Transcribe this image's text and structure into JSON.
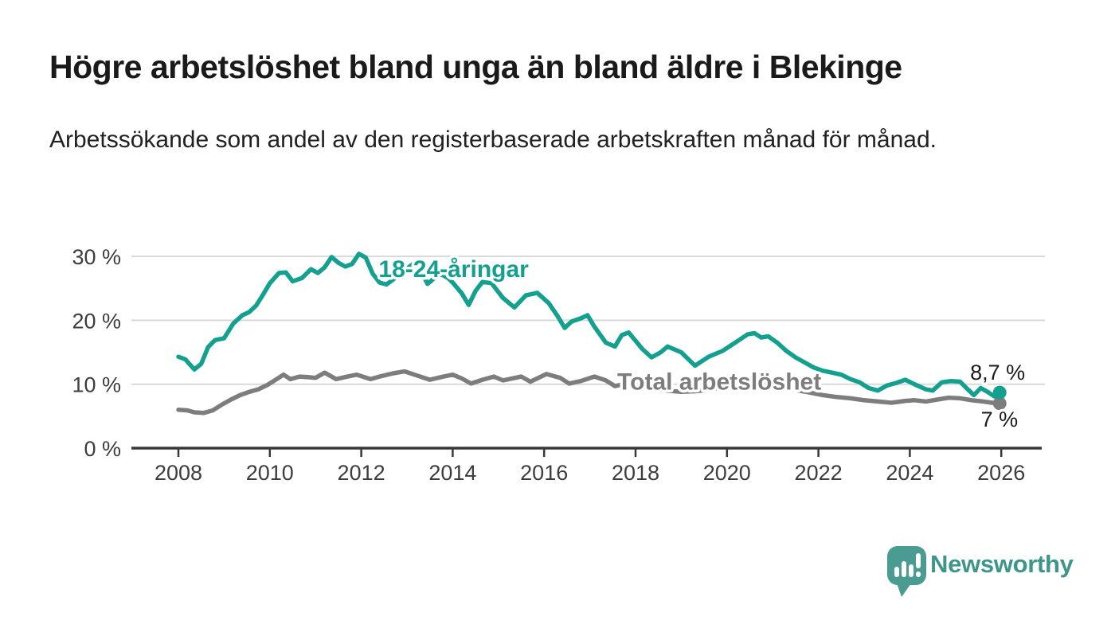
{
  "header": {
    "title": "Högre arbetslöshet bland unga än bland äldre i Blekinge",
    "subtitle": "Arbetssökande som andel av den registerbaserade arbetskraften månad för månad."
  },
  "chart_data": {
    "type": "line",
    "unit": "%",
    "grid": true,
    "legend_position": "inline-labels",
    "x_axis": {
      "range_years": [
        2006.95,
        2027.0
      ],
      "ticks": [
        {
          "year": 2008,
          "label": "2008"
        },
        {
          "year": 2010,
          "label": "2010"
        },
        {
          "year": 2012,
          "label": "2012"
        },
        {
          "year": 2014,
          "label": "2014"
        },
        {
          "year": 2016,
          "label": "2016"
        },
        {
          "year": 2018,
          "label": "2018"
        },
        {
          "year": 2020,
          "label": "2020"
        },
        {
          "year": 2022,
          "label": "2022"
        },
        {
          "year": 2024,
          "label": "2024"
        },
        {
          "year": 2026,
          "label": "2026"
        }
      ]
    },
    "y_axis": {
      "range": [
        0,
        32
      ],
      "ticks": [
        {
          "value": 30,
          "label": "30 %"
        },
        {
          "value": 20,
          "label": "20 %"
        },
        {
          "value": 10,
          "label": "10 %"
        },
        {
          "value": 0,
          "label": "0 %"
        }
      ]
    },
    "series": [
      {
        "name": "18-24-aringar",
        "label": "18-24-åringar",
        "color": "#13a08f",
        "end_value": 8.7,
        "end_label": "8,7 %",
        "label_anchor": {
          "year": 2012.38,
          "value": 28.0
        },
        "points": [
          [
            2008.0,
            14.3
          ],
          [
            2008.15,
            13.9
          ],
          [
            2008.35,
            12.3
          ],
          [
            2008.5,
            13.2
          ],
          [
            2008.65,
            15.8
          ],
          [
            2008.8,
            16.9
          ],
          [
            2009.0,
            17.2
          ],
          [
            2009.2,
            19.5
          ],
          [
            2009.4,
            20.8
          ],
          [
            2009.55,
            21.3
          ],
          [
            2009.7,
            22.3
          ],
          [
            2009.85,
            24.0
          ],
          [
            2010.0,
            25.8
          ],
          [
            2010.2,
            27.4
          ],
          [
            2010.35,
            27.5
          ],
          [
            2010.5,
            26.1
          ],
          [
            2010.7,
            26.6
          ],
          [
            2010.9,
            28.0
          ],
          [
            2011.05,
            27.4
          ],
          [
            2011.2,
            28.3
          ],
          [
            2011.35,
            29.9
          ],
          [
            2011.5,
            29.0
          ],
          [
            2011.65,
            28.4
          ],
          [
            2011.8,
            28.8
          ],
          [
            2011.95,
            30.4
          ],
          [
            2012.1,
            29.8
          ],
          [
            2012.25,
            27.3
          ],
          [
            2012.4,
            25.9
          ],
          [
            2012.55,
            25.6
          ],
          [
            2012.7,
            26.4
          ],
          [
            2012.85,
            27.3
          ],
          [
            2013.0,
            28.1
          ],
          [
            2013.15,
            28.9
          ],
          [
            2013.3,
            27.8
          ],
          [
            2013.45,
            25.7
          ],
          [
            2013.6,
            26.6
          ],
          [
            2013.75,
            27.2
          ],
          [
            2013.9,
            26.6
          ],
          [
            2014.0,
            25.9
          ],
          [
            2014.2,
            24.2
          ],
          [
            2014.35,
            22.4
          ],
          [
            2014.5,
            24.6
          ],
          [
            2014.65,
            26.0
          ],
          [
            2014.85,
            25.8
          ],
          [
            2015.1,
            23.5
          ],
          [
            2015.35,
            22.0
          ],
          [
            2015.6,
            23.9
          ],
          [
            2015.85,
            24.3
          ],
          [
            2016.1,
            22.7
          ],
          [
            2016.3,
            20.6
          ],
          [
            2016.45,
            18.8
          ],
          [
            2016.6,
            19.8
          ],
          [
            2016.8,
            20.3
          ],
          [
            2016.95,
            20.8
          ],
          [
            2017.1,
            19.0
          ],
          [
            2017.35,
            16.5
          ],
          [
            2017.55,
            15.9
          ],
          [
            2017.7,
            17.7
          ],
          [
            2017.85,
            18.1
          ],
          [
            2018.15,
            15.5
          ],
          [
            2018.35,
            14.2
          ],
          [
            2018.55,
            15.0
          ],
          [
            2018.7,
            15.9
          ],
          [
            2019.0,
            15.0
          ],
          [
            2019.3,
            12.9
          ],
          [
            2019.6,
            14.3
          ],
          [
            2019.9,
            15.2
          ],
          [
            2020.2,
            16.6
          ],
          [
            2020.45,
            17.8
          ],
          [
            2020.6,
            18.0
          ],
          [
            2020.75,
            17.3
          ],
          [
            2020.9,
            17.5
          ],
          [
            2021.1,
            16.5
          ],
          [
            2021.3,
            15.2
          ],
          [
            2021.5,
            14.2
          ],
          [
            2021.7,
            13.4
          ],
          [
            2021.9,
            12.6
          ],
          [
            2022.1,
            12.1
          ],
          [
            2022.3,
            11.8
          ],
          [
            2022.5,
            11.5
          ],
          [
            2022.7,
            10.8
          ],
          [
            2022.9,
            10.3
          ],
          [
            2023.1,
            9.4
          ],
          [
            2023.3,
            9.0
          ],
          [
            2023.5,
            9.8
          ],
          [
            2023.7,
            10.2
          ],
          [
            2023.9,
            10.7
          ],
          [
            2024.1,
            10.0
          ],
          [
            2024.35,
            9.2
          ],
          [
            2024.5,
            9.0
          ],
          [
            2024.7,
            10.3
          ],
          [
            2024.9,
            10.5
          ],
          [
            2025.1,
            10.4
          ],
          [
            2025.25,
            9.3
          ],
          [
            2025.4,
            8.3
          ],
          [
            2025.55,
            9.4
          ],
          [
            2025.7,
            8.8
          ],
          [
            2025.85,
            8.1
          ],
          [
            2026.0,
            8.7
          ]
        ]
      },
      {
        "name": "total-arbetsloshet",
        "label": "Total arbetslöshet",
        "color": "#7d7d7d",
        "end_value": 7.0,
        "end_label": "7 %",
        "label_anchor": {
          "year": 2017.6,
          "value": 10.4
        },
        "points": [
          [
            2008.0,
            6.0
          ],
          [
            2008.2,
            5.9
          ],
          [
            2008.35,
            5.6
          ],
          [
            2008.55,
            5.5
          ],
          [
            2008.75,
            5.9
          ],
          [
            2008.95,
            6.8
          ],
          [
            2009.15,
            7.6
          ],
          [
            2009.35,
            8.3
          ],
          [
            2009.55,
            8.8
          ],
          [
            2009.75,
            9.2
          ],
          [
            2009.95,
            9.9
          ],
          [
            2010.15,
            10.8
          ],
          [
            2010.3,
            11.5
          ],
          [
            2010.45,
            10.8
          ],
          [
            2010.65,
            11.2
          ],
          [
            2010.85,
            11.1
          ],
          [
            2011.0,
            11.0
          ],
          [
            2011.2,
            11.8
          ],
          [
            2011.45,
            10.8
          ],
          [
            2011.7,
            11.2
          ],
          [
            2011.9,
            11.5
          ],
          [
            2012.2,
            10.8
          ],
          [
            2012.4,
            11.2
          ],
          [
            2012.7,
            11.7
          ],
          [
            2012.95,
            12.0
          ],
          [
            2013.25,
            11.3
          ],
          [
            2013.5,
            10.7
          ],
          [
            2013.8,
            11.2
          ],
          [
            2014.0,
            11.5
          ],
          [
            2014.2,
            10.9
          ],
          [
            2014.4,
            10.1
          ],
          [
            2014.65,
            10.7
          ],
          [
            2014.9,
            11.2
          ],
          [
            2015.1,
            10.6
          ],
          [
            2015.3,
            10.9
          ],
          [
            2015.5,
            11.2
          ],
          [
            2015.7,
            10.4
          ],
          [
            2016.05,
            11.6
          ],
          [
            2016.35,
            11.0
          ],
          [
            2016.55,
            10.1
          ],
          [
            2016.8,
            10.5
          ],
          [
            2017.1,
            11.2
          ],
          [
            2017.35,
            10.6
          ],
          [
            2017.55,
            9.7
          ],
          [
            2017.8,
            10.1
          ],
          [
            2018.1,
            9.6
          ],
          [
            2018.4,
            9.2
          ],
          [
            2018.7,
            9.0
          ],
          [
            2019.0,
            8.8
          ],
          [
            2019.3,
            8.9
          ],
          [
            2019.6,
            9.1
          ],
          [
            2019.9,
            9.6
          ],
          [
            2020.3,
            10.2
          ],
          [
            2020.6,
            10.6
          ],
          [
            2020.9,
            10.3
          ],
          [
            2021.2,
            9.7
          ],
          [
            2021.5,
            9.1
          ],
          [
            2021.8,
            8.7
          ],
          [
            2022.1,
            8.3
          ],
          [
            2022.4,
            8.0
          ],
          [
            2022.7,
            7.8
          ],
          [
            2023.0,
            7.5
          ],
          [
            2023.3,
            7.3
          ],
          [
            2023.6,
            7.1
          ],
          [
            2023.9,
            7.4
          ],
          [
            2024.1,
            7.5
          ],
          [
            2024.35,
            7.3
          ],
          [
            2024.6,
            7.6
          ],
          [
            2024.85,
            7.9
          ],
          [
            2025.1,
            7.8
          ],
          [
            2025.35,
            7.5
          ],
          [
            2025.6,
            7.3
          ],
          [
            2025.8,
            7.1
          ],
          [
            2026.0,
            7.0
          ]
        ]
      }
    ]
  },
  "footer": {
    "brand": "Newsworthy"
  },
  "colors": {
    "accent_teal": "#13a08f",
    "series_gray": "#7d7d7d",
    "logo_teal": "#4a9c92",
    "brand_text": "#3e968b",
    "grid": "#d9d9d9",
    "axis": "#383838",
    "title_text": "#1a1a1a"
  }
}
